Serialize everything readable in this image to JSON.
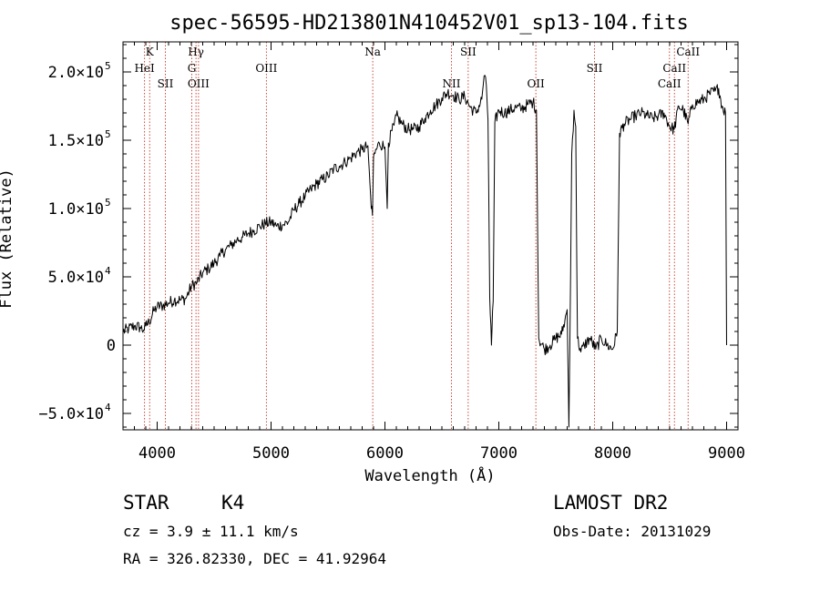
{
  "chart_data": {
    "type": "line",
    "title": "spec-56595-HD213801N410452V01_sp13-104.fits",
    "xlabel": "Wavelength (Å)",
    "ylabel": "Flux (Relative)",
    "xlim": [
      3700,
      9100
    ],
    "ylim": [
      -62000,
      222000
    ],
    "x_ticks": [
      {
        "value": 4000,
        "label": "4000"
      },
      {
        "value": 5000,
        "label": "5000"
      },
      {
        "value": 6000,
        "label": "6000"
      },
      {
        "value": 7000,
        "label": "7000"
      },
      {
        "value": 8000,
        "label": "8000"
      },
      {
        "value": 9000,
        "label": "9000"
      }
    ],
    "y_ticks": [
      {
        "value": -50000,
        "mantissa": "−5.0×10",
        "exp": "4"
      },
      {
        "value": 0,
        "mantissa": "0",
        "exp": ""
      },
      {
        "value": 50000,
        "mantissa": "5.0×10",
        "exp": "4"
      },
      {
        "value": 100000,
        "mantissa": "1.0×10",
        "exp": "5"
      },
      {
        "value": 150000,
        "mantissa": "1.5×10",
        "exp": "5"
      },
      {
        "value": 200000,
        "mantissa": "2.0×10",
        "exp": "5"
      }
    ],
    "spectral_lines": [
      {
        "label": "K",
        "wavelength": 3934,
        "row": 0
      },
      {
        "label": "HeI",
        "wavelength": 3889,
        "row": 1
      },
      {
        "label": "SII",
        "wavelength": 4072,
        "row": 2
      },
      {
        "label": "Hγ",
        "wavelength": 4341,
        "row": 0
      },
      {
        "label": "G",
        "wavelength": 4304,
        "row": 1
      },
      {
        "label": "OIII",
        "wavelength": 4363,
        "row": 2
      },
      {
        "label": "OIII",
        "wavelength": 4959,
        "row": 1
      },
      {
        "label": "Na",
        "wavelength": 5893,
        "row": 0
      },
      {
        "label": "SII",
        "wavelength": 6731,
        "row": 0
      },
      {
        "label": "NII",
        "wavelength": 6584,
        "row": 2
      },
      {
        "label": "OII",
        "wavelength": 7325,
        "row": 2
      },
      {
        "label": "SII",
        "wavelength": 7840,
        "row": 1
      },
      {
        "label": "CaII",
        "wavelength": 8662,
        "row": 0
      },
      {
        "label": "CaII",
        "wavelength": 8542,
        "row": 1
      },
      {
        "label": "CaII",
        "wavelength": 8498,
        "row": 2
      }
    ],
    "series": [
      {
        "line_color": "#000000",
        "points": [
          [
            3700,
            10000
          ],
          [
            3750,
            12000
          ],
          [
            3800,
            14000
          ],
          [
            3850,
            13000
          ],
          [
            3880,
            11000
          ],
          [
            3900,
            14000
          ],
          [
            3930,
            17000
          ],
          [
            3970,
            25000
          ],
          [
            4000,
            28000
          ],
          [
            4050,
            29000
          ],
          [
            4100,
            31000
          ],
          [
            4150,
            33000
          ],
          [
            4200,
            33000
          ],
          [
            4250,
            34000
          ],
          [
            4300,
            43000
          ],
          [
            4350,
            46000
          ],
          [
            4400,
            53000
          ],
          [
            4450,
            56000
          ],
          [
            4500,
            60000
          ],
          [
            4550,
            65000
          ],
          [
            4600,
            70000
          ],
          [
            4650,
            73000
          ],
          [
            4700,
            77000
          ],
          [
            4750,
            79000
          ],
          [
            4800,
            82000
          ],
          [
            4850,
            84000
          ],
          [
            4900,
            87000
          ],
          [
            4950,
            89000
          ],
          [
            5000,
            90000
          ],
          [
            5050,
            87000
          ],
          [
            5100,
            88000
          ],
          [
            5150,
            90000
          ],
          [
            5200,
            99000
          ],
          [
            5250,
            104000
          ],
          [
            5300,
            109000
          ],
          [
            5350,
            114000
          ],
          [
            5400,
            118000
          ],
          [
            5450,
            121000
          ],
          [
            5500,
            124000
          ],
          [
            5550,
            129000
          ],
          [
            5600,
            131000
          ],
          [
            5650,
            134000
          ],
          [
            5700,
            137000
          ],
          [
            5750,
            141000
          ],
          [
            5800,
            143000
          ],
          [
            5850,
            146000
          ],
          [
            5880,
            100000
          ],
          [
            5890,
            95000
          ],
          [
            5900,
            138000
          ],
          [
            5950,
            148000
          ],
          [
            6000,
            145000
          ],
          [
            6020,
            100000
          ],
          [
            6030,
            148000
          ],
          [
            6080,
            161000
          ],
          [
            6100,
            168000
          ],
          [
            6150,
            162000
          ],
          [
            6200,
            158000
          ],
          [
            6250,
            158000
          ],
          [
            6300,
            160000
          ],
          [
            6350,
            166000
          ],
          [
            6400,
            172000
          ],
          [
            6450,
            176000
          ],
          [
            6500,
            181000
          ],
          [
            6550,
            185000
          ],
          [
            6600,
            183000
          ],
          [
            6650,
            180000
          ],
          [
            6700,
            182000
          ],
          [
            6750,
            174000
          ],
          [
            6800,
            170000
          ],
          [
            6850,
            180000
          ],
          [
            6870,
            197000
          ],
          [
            6890,
            190000
          ],
          [
            6905,
            165000
          ],
          [
            6920,
            35000
          ],
          [
            6935,
            0
          ],
          [
            6950,
            32000
          ],
          [
            6965,
            163000
          ],
          [
            7000,
            172000
          ],
          [
            7050,
            170000
          ],
          [
            7100,
            172000
          ],
          [
            7150,
            174000
          ],
          [
            7200,
            173000
          ],
          [
            7250,
            176000
          ],
          [
            7300,
            178000
          ],
          [
            7330,
            172000
          ],
          [
            7350,
            5000
          ],
          [
            7400,
            -3000
          ],
          [
            7450,
            0
          ],
          [
            7500,
            5000
          ],
          [
            7550,
            8000
          ],
          [
            7580,
            18000
          ],
          [
            7600,
            26000
          ],
          [
            7615,
            -60000
          ],
          [
            7625,
            10000
          ],
          [
            7640,
            140000
          ],
          [
            7660,
            172000
          ],
          [
            7675,
            160000
          ],
          [
            7690,
            5000
          ],
          [
            7720,
            -5000
          ],
          [
            7750,
            0
          ],
          [
            7800,
            5000
          ],
          [
            7850,
            -3000
          ],
          [
            7900,
            5000
          ],
          [
            7950,
            0
          ],
          [
            8000,
            -3000
          ],
          [
            8040,
            10000
          ],
          [
            8060,
            155000
          ],
          [
            8100,
            162000
          ],
          [
            8150,
            165000
          ],
          [
            8200,
            168000
          ],
          [
            8250,
            170000
          ],
          [
            8300,
            168000
          ],
          [
            8350,
            166000
          ],
          [
            8400,
            168000
          ],
          [
            8450,
            170000
          ],
          [
            8500,
            160000
          ],
          [
            8540,
            158000
          ],
          [
            8580,
            175000
          ],
          [
            8620,
            172000
          ],
          [
            8662,
            162000
          ],
          [
            8700,
            176000
          ],
          [
            8750,
            178000
          ],
          [
            8800,
            180000
          ],
          [
            8850,
            184000
          ],
          [
            8900,
            186000
          ],
          [
            8930,
            188000
          ],
          [
            8960,
            175000
          ],
          [
            8990,
            170000
          ],
          [
            9000,
            0
          ]
        ]
      }
    ]
  },
  "footer": {
    "object_class": "STAR",
    "subclass": "K4",
    "cz": "cz = 3.9 ± 11.1 km/s",
    "radec": "RA = 326.82330, DEC =  41.92964",
    "survey": "LAMOST DR2",
    "obs_date": "Obs-Date: 20131029"
  }
}
